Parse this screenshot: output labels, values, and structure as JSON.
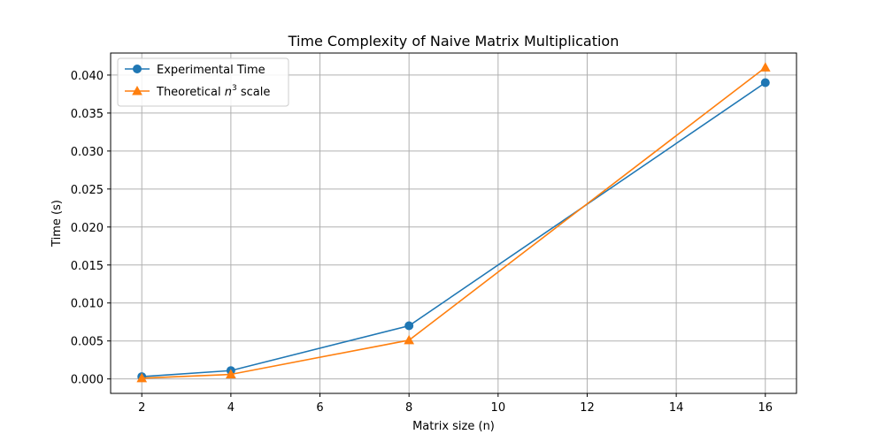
{
  "chart_data": {
    "type": "line",
    "title": "Time Complexity of Naive Matrix Multiplication",
    "xlabel": "Matrix size (n)",
    "ylabel": "Time (s)",
    "xlim": [
      1.3,
      16.7
    ],
    "ylim": [
      -0.0019,
      0.0429
    ],
    "grid": true,
    "legend_position": "top-left",
    "x_ticks": [
      2,
      4,
      6,
      8,
      10,
      12,
      14,
      16
    ],
    "y_ticks": [
      0.0,
      0.005,
      0.01,
      0.015,
      0.02,
      0.025,
      0.03,
      0.035,
      0.04
    ],
    "x_tick_labels": [
      "2",
      "4",
      "6",
      "8",
      "10",
      "12",
      "14",
      "16"
    ],
    "y_tick_labels": [
      "0.000",
      "0.005",
      "0.010",
      "0.015",
      "0.020",
      "0.025",
      "0.030",
      "0.035",
      "0.040"
    ],
    "series": [
      {
        "name": "Experimental Time",
        "color": "#1f77b4",
        "marker": "circle",
        "x": [
          2,
          4,
          8,
          16
        ],
        "values": [
          0.0003,
          0.0011,
          0.007,
          0.039
        ]
      },
      {
        "name": "Theoretical n³ scale",
        "legend_prefix": "Theoretical ",
        "legend_math": "n",
        "legend_sup": "3",
        "legend_suffix": " scale",
        "color": "#ff7f0e",
        "marker": "triangle",
        "x": [
          2,
          4,
          8,
          16
        ],
        "values": [
          0.0001,
          0.0006,
          0.0051,
          0.041
        ]
      }
    ]
  }
}
